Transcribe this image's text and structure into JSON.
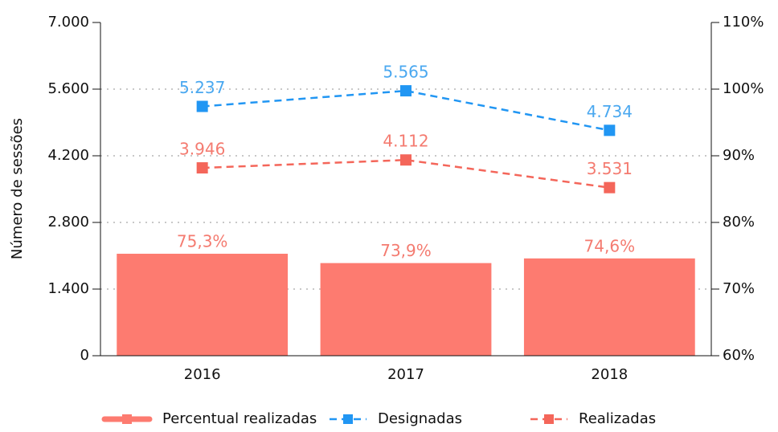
{
  "chart_data": {
    "type": "combo",
    "y_label": "Número de sessões",
    "categories": [
      "2016",
      "2017",
      "2018"
    ],
    "series": [
      {
        "name": "Percentual realizadas",
        "type": "bar",
        "axis": "y2",
        "color": "#fd7b70",
        "label_color": "#f47b70",
        "values": [
          75.3,
          73.9,
          74.6
        ],
        "value_labels": [
          "75,3%",
          "73,9%",
          "74,6%"
        ]
      },
      {
        "name": "Designadas",
        "type": "line",
        "color": "#2196f3",
        "label_color": "#4aa8f0",
        "values": [
          5237,
          5565,
          4734
        ],
        "value_labels": [
          "5.237",
          "5.565",
          "4.734"
        ]
      },
      {
        "name": "Realizadas",
        "type": "line",
        "color": "#f4665a",
        "label_color": "#f47b70",
        "values": [
          3946,
          4112,
          3531
        ],
        "value_labels": [
          "3.946",
          "4.112",
          "3.531"
        ]
      }
    ],
    "ylim": [
      0,
      7000
    ],
    "yticks": [
      0,
      {
        "value": 1400,
        "label": "1.400"
      },
      {
        "value": 2800,
        "label": "2.800"
      },
      {
        "value": 4200,
        "label": "4.200"
      },
      {
        "value": 5600,
        "label": "5.600"
      },
      {
        "value": 7000,
        "label": "7.000"
      }
    ],
    "y2lim": [
      60,
      110
    ],
    "y2ticks": [
      {
        "value": 60,
        "label": "60%"
      },
      {
        "value": 70,
        "label": "70%"
      },
      {
        "value": 80,
        "label": "80%"
      },
      {
        "value": 90,
        "label": "90%"
      },
      {
        "value": 100,
        "label": "100%"
      },
      {
        "value": 110,
        "label": "110%"
      }
    ],
    "grid": true,
    "legend": "bottom"
  }
}
